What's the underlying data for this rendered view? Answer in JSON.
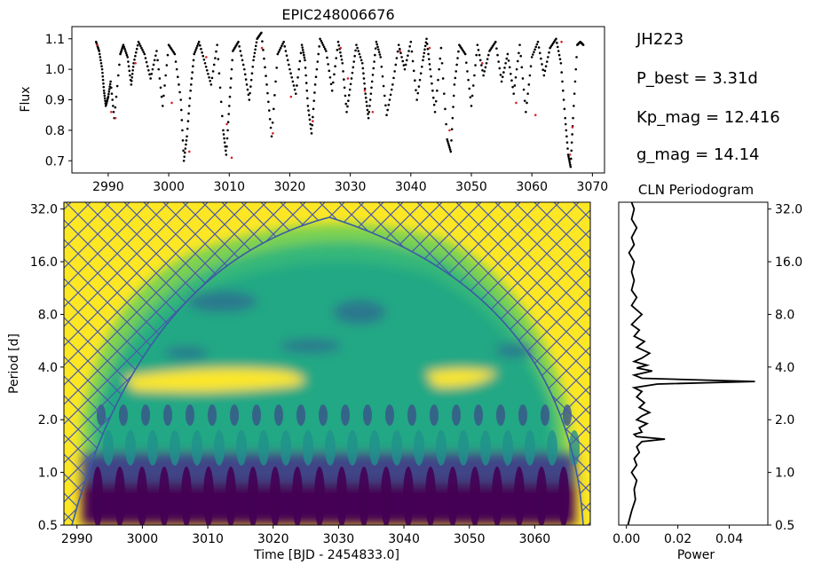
{
  "star_id": "JH223",
  "info_lines": [
    "P_best = 3.31d",
    "Kp_mag = 12.416",
    "g_mag = 14.14"
  ],
  "chart_data": [
    {
      "type": "scatter",
      "panel": "light-curve",
      "title": "EPIC248006676",
      "xlabel": "",
      "ylabel": "Flux",
      "xlim": [
        2984,
        3072
      ],
      "ylim": [
        0.66,
        1.14
      ],
      "xticks": [
        2990,
        3000,
        3010,
        3020,
        3030,
        3040,
        3050,
        3060,
        3070
      ],
      "yticks": [
        0.7,
        0.8,
        0.9,
        1.0,
        1.1
      ],
      "series": [
        {
          "color": "#000000",
          "x": [
            2988,
            2988.5,
            2989,
            2989.3,
            2989.6,
            2990,
            2990.4,
            2991,
            2992,
            2992.5,
            2993.2,
            2993.8,
            2994.2,
            2995,
            2996,
            2997,
            2998,
            2999,
            3000,
            3001,
            3002,
            3002.5,
            3003,
            3003.6,
            3004.2,
            3005,
            3006,
            3007,
            3008,
            3009,
            3009.5,
            3010,
            3010.6,
            3011.5,
            3012.5,
            3013.3,
            3014,
            3014.6,
            3015.3,
            3016.2,
            3017,
            3018,
            3019,
            3020,
            3021,
            3022,
            3022.5,
            3023,
            3023.6,
            3024.2,
            3025,
            3026,
            3027,
            3028,
            3028.7,
            3029.4,
            3030.2,
            3031,
            3032,
            3032.5,
            3033,
            3033.6,
            3034.3,
            3035,
            3036,
            3037,
            3038,
            3039,
            3040,
            3041,
            3042,
            3042.6,
            3043.2,
            3044,
            3045,
            3046,
            3046.6,
            3047.2,
            3048,
            3049,
            3050,
            3051,
            3052,
            3053,
            3054,
            3055,
            3056,
            3057,
            3058,
            3059,
            3060,
            3061,
            3062,
            3063,
            3064,
            3064.8,
            3065.5,
            3066,
            3066.4,
            3066.8,
            3067.5,
            3068,
            3068.5
          ],
          "y": [
            1.09,
            1.06,
            1.0,
            0.93,
            0.88,
            0.91,
            0.96,
            0.84,
            1.05,
            1.08,
            1.04,
            0.95,
            1.02,
            1.09,
            1.05,
            0.97,
            1.06,
            0.88,
            1.08,
            1.05,
            0.9,
            0.7,
            0.78,
            0.93,
            1.05,
            1.09,
            1.02,
            0.95,
            1.08,
            0.8,
            0.72,
            0.88,
            1.06,
            1.09,
            1.0,
            0.9,
            1.03,
            1.1,
            1.12,
            0.95,
            0.78,
            1.05,
            1.09,
            1.0,
            0.92,
            1.08,
            1.03,
            0.88,
            0.79,
            0.95,
            1.1,
            1.06,
            0.93,
            1.09,
            1.02,
            0.86,
            0.97,
            1.08,
            1.02,
            0.92,
            0.84,
            0.96,
            1.09,
            1.04,
            0.85,
            0.95,
            1.08,
            1.0,
            1.09,
            0.9,
            1.03,
            1.1,
            1.0,
            0.86,
            1.07,
            0.77,
            0.73,
            0.95,
            1.08,
            1.05,
            0.88,
            1.08,
            0.98,
            1.06,
            1.09,
            0.96,
            1.05,
            0.92,
            1.08,
            0.86,
            1.04,
            1.09,
            0.98,
            1.07,
            1.1,
            1.02,
            0.84,
            0.72,
            0.68,
            0.84,
            1.08,
            1.09,
            1.08
          ]
        },
        {
          "color": "#d62728",
          "x": [
            2988.2,
            2990.5,
            2991.2,
            2994.5,
            3000.5,
            3003.4,
            3006.2,
            3009.6,
            3010.4,
            3015.4,
            3017.2,
            3020.2,
            3023.8,
            3028.4,
            3029.6,
            3032.4,
            3033.7,
            3038.2,
            3043.1,
            3046.4,
            3051.8,
            3057.4,
            3060.6,
            3064.9,
            3066.3,
            3066.7
          ],
          "y": [
            1.08,
            0.86,
            0.84,
            1.02,
            0.89,
            0.73,
            1.04,
            0.82,
            0.71,
            1.07,
            0.79,
            0.91,
            0.83,
            1.07,
            0.97,
            0.93,
            0.86,
            1.06,
            1.07,
            0.8,
            1.02,
            0.89,
            0.85,
            1.09,
            0.72,
            0.81
          ]
        }
      ]
    },
    {
      "type": "heatmap",
      "panel": "wavelet",
      "title": "",
      "xlabel": "Time [BJD - 2454833.0]",
      "ylabel": "Period [d]",
      "xlim": [
        2988,
        3068.5
      ],
      "ylim": [
        0.5,
        35
      ],
      "yscale": "log2",
      "xticks": [
        2990,
        3000,
        3010,
        3020,
        3030,
        3040,
        3050,
        3060
      ],
      "yticks": [
        0.5,
        1.0,
        2.0,
        4.0,
        8.0,
        16.0,
        32.0
      ],
      "colormap": "viridis",
      "cone_of_influence_peak": [
        3028,
        30
      ],
      "power_max": {
        "time": 3020,
        "period": 3.3
      },
      "hatch": "cone of influence"
    },
    {
      "type": "line",
      "panel": "periodogram",
      "title": "CLN Periodogram",
      "xlabel": "Power",
      "ylabel": "",
      "xlim": [
        -0.003,
        0.055
      ],
      "ylim": [
        0.5,
        35
      ],
      "yscale": "log2",
      "xticks": [
        0.0,
        0.02,
        0.04
      ],
      "xticklabels": [
        "0.00",
        "0.02",
        "0.04"
      ],
      "yticks": [
        0.5,
        1.0,
        2.0,
        4.0,
        8.0,
        16.0,
        32.0
      ],
      "period": [
        0.5,
        0.6,
        0.7,
        0.8,
        0.9,
        1.0,
        1.1,
        1.2,
        1.3,
        1.4,
        1.5,
        1.55,
        1.6,
        1.65,
        1.7,
        1.8,
        1.9,
        2.0,
        2.1,
        2.2,
        2.35,
        2.5,
        2.7,
        2.9,
        3.05,
        3.2,
        3.31,
        3.45,
        3.6,
        3.8,
        3.95,
        4.1,
        4.3,
        4.5,
        4.8,
        5.2,
        5.6,
        6.0,
        6.5,
        7.0,
        7.5,
        8.0,
        9.0,
        10.0,
        11.0,
        12.5,
        14.0,
        16.0,
        18.0,
        20.0,
        22.0,
        25.0,
        28.0,
        32.0,
        35.0
      ],
      "power": [
        0.0006,
        0.002,
        0.0035,
        0.003,
        0.004,
        0.002,
        0.004,
        0.003,
        0.005,
        0.004,
        0.006,
        0.015,
        0.004,
        0.003,
        0.006,
        0.005,
        0.008,
        0.004,
        0.006,
        0.009,
        0.005,
        0.007,
        0.004,
        0.006,
        0.003,
        0.012,
        0.05,
        0.006,
        0.003,
        0.01,
        0.004,
        0.008,
        0.003,
        0.006,
        0.009,
        0.004,
        0.007,
        0.003,
        0.005,
        0.002,
        0.004,
        0.006,
        0.002,
        0.004,
        0.002,
        0.003,
        0.002,
        0.003,
        0.001,
        0.003,
        0.002,
        0.004,
        0.002,
        0.003,
        0.002
      ]
    }
  ]
}
